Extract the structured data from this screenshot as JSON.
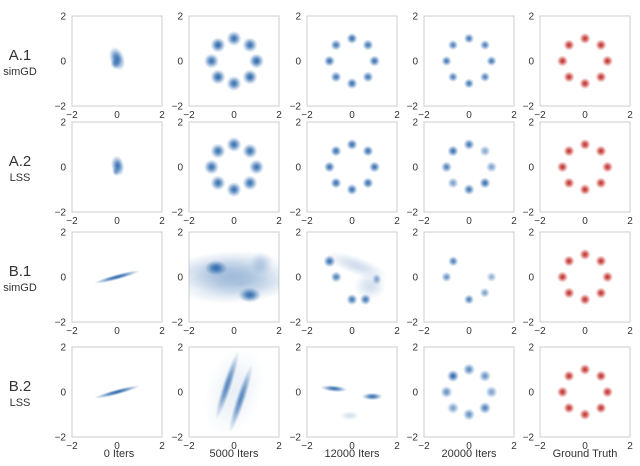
{
  "chart_data": {
    "type": "density-grid",
    "axis": {
      "xlim": [
        -2,
        2
      ],
      "ylim": [
        -2,
        2
      ],
      "xticks": [
        -2,
        0,
        2
      ],
      "yticks": [
        -2,
        0,
        2
      ]
    },
    "columns": [
      "0 Iters",
      "5000 Iters",
      "12000 Iters",
      "20000 Iters",
      "Ground Truth"
    ],
    "rows": [
      {
        "label": "A.1",
        "method": "simGD"
      },
      {
        "label": "A.2",
        "method": "LSS"
      },
      {
        "label": "B.1",
        "method": "simGD"
      },
      {
        "label": "B.2",
        "method": "LSS"
      }
    ],
    "colors": {
      "generated": "#1f5fa8",
      "ground_truth": "#c0241f",
      "frame": "#cccccc",
      "text": "#333333"
    },
    "panels": [
      [
        {
          "blobs": [
            [
              0,
              0.1,
              0.16,
              0.26,
              0.9,
              20
            ],
            [
              -0.08,
              -0.12,
              0.1,
              0.12,
              0.6,
              0
            ]
          ]
        },
        {
          "blobs": [
            [
              1,
              0,
              0.16,
              0.16,
              0.95,
              0
            ],
            [
              0.71,
              0.71,
              0.16,
              0.16,
              0.9,
              0
            ],
            [
              0,
              1,
              0.16,
              0.16,
              0.9,
              0
            ],
            [
              -0.71,
              0.71,
              0.16,
              0.16,
              0.95,
              0
            ],
            [
              -1,
              0,
              0.16,
              0.16,
              0.9,
              0
            ],
            [
              -0.71,
              -0.71,
              0.16,
              0.16,
              0.95,
              0
            ],
            [
              0,
              -1,
              0.16,
              0.16,
              0.9,
              0
            ],
            [
              0.71,
              -0.71,
              0.16,
              0.16,
              0.95,
              0
            ]
          ]
        },
        {
          "blobs": [
            [
              1,
              0,
              0.12,
              0.12,
              0.9,
              0
            ],
            [
              0.71,
              0.71,
              0.12,
              0.12,
              0.85,
              0
            ],
            [
              0,
              1,
              0.12,
              0.12,
              0.9,
              0
            ],
            [
              -0.71,
              0.71,
              0.12,
              0.12,
              0.85,
              0
            ],
            [
              -1,
              0,
              0.12,
              0.12,
              0.9,
              0
            ],
            [
              -0.71,
              -0.71,
              0.12,
              0.12,
              0.85,
              0
            ],
            [
              0,
              -1,
              0.12,
              0.12,
              0.9,
              0
            ],
            [
              0.71,
              -0.71,
              0.12,
              0.12,
              0.85,
              0
            ]
          ]
        },
        {
          "blobs": [
            [
              1,
              0,
              0.11,
              0.11,
              0.85,
              0
            ],
            [
              0.71,
              0.71,
              0.11,
              0.11,
              0.8,
              0
            ],
            [
              0,
              1,
              0.11,
              0.11,
              0.85,
              0
            ],
            [
              -0.71,
              0.71,
              0.11,
              0.11,
              0.8,
              0
            ],
            [
              -1,
              0,
              0.11,
              0.11,
              0.85,
              0
            ],
            [
              -0.71,
              -0.71,
              0.11,
              0.11,
              0.8,
              0
            ],
            [
              0,
              -1,
              0.11,
              0.11,
              0.85,
              0
            ],
            [
              0.71,
              -0.71,
              0.11,
              0.11,
              0.8,
              0
            ]
          ]
        },
        {
          "ground_truth": true,
          "blobs": [
            [
              1,
              0,
              0.12,
              0.12,
              0.95,
              0
            ],
            [
              0.71,
              0.71,
              0.12,
              0.12,
              0.95,
              0
            ],
            [
              0,
              1,
              0.12,
              0.12,
              0.95,
              0
            ],
            [
              -0.71,
              0.71,
              0.12,
              0.12,
              0.95,
              0
            ],
            [
              -1,
              0,
              0.12,
              0.12,
              0.95,
              0
            ],
            [
              -0.71,
              -0.71,
              0.12,
              0.12,
              0.95,
              0
            ],
            [
              0,
              -1,
              0.12,
              0.12,
              0.95,
              0
            ],
            [
              0.71,
              -0.71,
              0.12,
              0.12,
              0.95,
              0
            ]
          ]
        }
      ],
      [
        {
          "blobs": [
            [
              0.03,
              0.05,
              0.14,
              0.22,
              0.9,
              10
            ],
            [
              -0.05,
              -0.2,
              0.08,
              0.1,
              0.5,
              0
            ]
          ]
        },
        {
          "blobs": [
            [
              1,
              0,
              0.16,
              0.16,
              0.9,
              0
            ],
            [
              0.71,
              0.71,
              0.16,
              0.16,
              0.9,
              0
            ],
            [
              0,
              1,
              0.16,
              0.16,
              0.9,
              0
            ],
            [
              -0.71,
              0.71,
              0.16,
              0.16,
              0.9,
              0
            ],
            [
              -1,
              0,
              0.16,
              0.16,
              0.9,
              0
            ],
            [
              -0.71,
              -0.71,
              0.16,
              0.16,
              0.9,
              0
            ],
            [
              0,
              -1,
              0.16,
              0.16,
              0.9,
              0
            ],
            [
              0.71,
              -0.71,
              0.16,
              0.16,
              0.9,
              0
            ]
          ]
        },
        {
          "blobs": [
            [
              1,
              0,
              0.12,
              0.12,
              0.9,
              0
            ],
            [
              0.71,
              0.71,
              0.12,
              0.12,
              0.9,
              0
            ],
            [
              0,
              1,
              0.12,
              0.12,
              0.9,
              0
            ],
            [
              -0.71,
              0.71,
              0.12,
              0.12,
              0.9,
              0
            ],
            [
              -1,
              0,
              0.12,
              0.12,
              0.9,
              0
            ],
            [
              -0.71,
              -0.71,
              0.12,
              0.12,
              0.9,
              0
            ],
            [
              0,
              -1,
              0.12,
              0.12,
              0.9,
              0
            ],
            [
              0.71,
              -0.71,
              0.12,
              0.12,
              0.9,
              0
            ]
          ]
        },
        {
          "blobs": [
            [
              1,
              0,
              0.12,
              0.12,
              0.6,
              0
            ],
            [
              0.71,
              0.71,
              0.12,
              0.12,
              0.55,
              0
            ],
            [
              0,
              1,
              0.12,
              0.12,
              0.85,
              0
            ],
            [
              -0.71,
              0.71,
              0.12,
              0.12,
              0.9,
              0
            ],
            [
              -1,
              0,
              0.12,
              0.12,
              0.8,
              0
            ],
            [
              -0.71,
              -0.71,
              0.12,
              0.12,
              0.6,
              0
            ],
            [
              0,
              -1,
              0.12,
              0.12,
              0.85,
              0
            ],
            [
              0.71,
              -0.71,
              0.12,
              0.12,
              0.9,
              0
            ]
          ]
        },
        {
          "ground_truth": true,
          "blobs": [
            [
              1,
              0,
              0.12,
              0.12,
              0.95,
              0
            ],
            [
              0.71,
              0.71,
              0.12,
              0.12,
              0.95,
              0
            ],
            [
              0,
              1,
              0.12,
              0.12,
              0.95,
              0
            ],
            [
              -0.71,
              0.71,
              0.12,
              0.12,
              0.95,
              0
            ],
            [
              -1,
              0,
              0.12,
              0.12,
              0.95,
              0
            ],
            [
              -0.71,
              -0.71,
              0.12,
              0.12,
              0.95,
              0
            ],
            [
              0,
              -1,
              0.12,
              0.12,
              0.95,
              0
            ],
            [
              0.71,
              -0.71,
              0.12,
              0.12,
              0.95,
              0
            ]
          ]
        }
      ],
      [
        {
          "blobs": [
            [
              0,
              0,
              0.5,
              0.06,
              0.95,
              15
            ]
          ]
        },
        {
          "blobs": [
            [
              -0.4,
              0.3,
              1.3,
              0.4,
              0.35,
              5
            ],
            [
              0.3,
              -0.3,
              1.3,
              0.4,
              0.35,
              5
            ],
            [
              -0.8,
              0.4,
              0.24,
              0.16,
              0.9,
              0
            ],
            [
              0.7,
              -0.8,
              0.24,
              0.16,
              0.9,
              0
            ],
            [
              1.2,
              0.6,
              0.25,
              0.25,
              0.25,
              0
            ]
          ]
        },
        {
          "blobs": [
            [
              -1,
              0.7,
              0.13,
              0.13,
              0.9,
              0
            ],
            [
              -0.7,
              0,
              0.12,
              0.12,
              0.8,
              0
            ],
            [
              0,
              -1,
              0.12,
              0.12,
              0.85,
              0
            ],
            [
              0.6,
              -1,
              0.12,
              0.12,
              0.85,
              0
            ],
            [
              1.1,
              -0.1,
              0.1,
              0.12,
              0.55,
              0
            ],
            [
              0.2,
              0.5,
              0.7,
              0.2,
              0.22,
              -20
            ],
            [
              0.8,
              -0.4,
              0.35,
              0.3,
              0.2,
              0
            ]
          ]
        },
        {
          "blobs": [
            [
              -0.7,
              0.7,
              0.11,
              0.11,
              0.8,
              0
            ],
            [
              -1,
              0,
              0.11,
              0.11,
              0.7,
              0
            ],
            [
              0,
              -1,
              0.11,
              0.11,
              0.8,
              0
            ],
            [
              0.7,
              -0.7,
              0.11,
              0.11,
              0.6,
              0
            ],
            [
              1,
              0,
              0.11,
              0.11,
              0.5,
              0
            ]
          ]
        },
        {
          "ground_truth": true,
          "blobs": [
            [
              1,
              0,
              0.12,
              0.12,
              0.95,
              0
            ],
            [
              0.71,
              0.71,
              0.12,
              0.12,
              0.95,
              0
            ],
            [
              0,
              1,
              0.12,
              0.12,
              0.95,
              0
            ],
            [
              -0.71,
              0.71,
              0.12,
              0.12,
              0.95,
              0
            ],
            [
              -1,
              0,
              0.12,
              0.12,
              0.95,
              0
            ],
            [
              -0.71,
              -0.71,
              0.12,
              0.12,
              0.95,
              0
            ],
            [
              0,
              -1,
              0.12,
              0.12,
              0.95,
              0
            ],
            [
              0.71,
              -0.71,
              0.12,
              0.12,
              0.95,
              0
            ]
          ]
        }
      ],
      [
        {
          "blobs": [
            [
              0,
              0,
              0.5,
              0.06,
              0.95,
              15
            ]
          ]
        },
        {
          "blobs": [
            [
              -0.3,
              0.3,
              0.1,
              0.75,
              0.75,
              -18
            ],
            [
              0.3,
              -0.3,
              0.1,
              0.75,
              0.75,
              -18
            ],
            [
              0,
              0,
              0.6,
              1.0,
              0.1,
              -18
            ]
          ]
        },
        {
          "blobs": [
            [
              -0.8,
              0.15,
              0.28,
              0.07,
              0.9,
              -5
            ],
            [
              0.9,
              -0.2,
              0.22,
              0.08,
              0.9,
              0
            ],
            [
              -0.1,
              -1.05,
              0.2,
              0.1,
              0.2,
              0
            ]
          ]
        },
        {
          "blobs": [
            [
              1,
              0,
              0.13,
              0.13,
              0.6,
              0
            ],
            [
              0.71,
              0.71,
              0.13,
              0.13,
              0.7,
              0
            ],
            [
              0,
              1,
              0.13,
              0.13,
              0.75,
              0
            ],
            [
              -0.71,
              0.71,
              0.13,
              0.13,
              0.95,
              0
            ],
            [
              -1,
              0,
              0.13,
              0.13,
              0.7,
              0
            ],
            [
              -0.71,
              -0.71,
              0.13,
              0.13,
              0.6,
              0
            ],
            [
              0,
              -1,
              0.13,
              0.13,
              0.7,
              0
            ],
            [
              0.71,
              -0.71,
              0.13,
              0.13,
              0.8,
              0
            ]
          ]
        },
        {
          "ground_truth": true,
          "blobs": [
            [
              1,
              0,
              0.12,
              0.12,
              0.95,
              0
            ],
            [
              0.71,
              0.71,
              0.12,
              0.12,
              0.95,
              0
            ],
            [
              0,
              1,
              0.12,
              0.12,
              0.95,
              0
            ],
            [
              -0.71,
              0.71,
              0.12,
              0.12,
              0.95,
              0
            ],
            [
              -1,
              0,
              0.12,
              0.12,
              0.95,
              0
            ],
            [
              -0.71,
              -0.71,
              0.12,
              0.12,
              0.95,
              0
            ],
            [
              0,
              -1,
              0.12,
              0.12,
              0.95,
              0
            ],
            [
              0.71,
              -0.71,
              0.12,
              0.12,
              0.95,
              0
            ]
          ]
        }
      ]
    ]
  }
}
